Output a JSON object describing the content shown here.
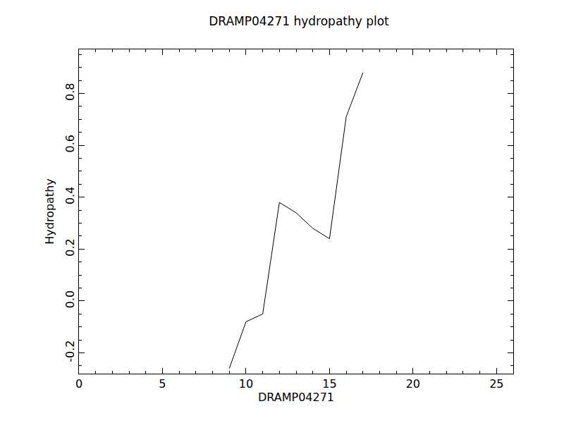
{
  "chart_data": {
    "type": "line",
    "title": "DRAMP04271 hydropathy plot",
    "x_label": "DRAMP04271",
    "y_label": "Hydropathy",
    "x": [
      9,
      10,
      11,
      12,
      13,
      14,
      15,
      16,
      17
    ],
    "values": [
      -0.26,
      -0.08,
      -0.05,
      0.38,
      0.34,
      0.28,
      0.24,
      0.71,
      0.88
    ],
    "color": "#000000",
    "xlim": [
      0,
      26
    ],
    "xticks": [
      0,
      5,
      10,
      15,
      20,
      25
    ],
    "ylim": [
      -0.28,
      0.97
    ],
    "yticks": [
      -0.2,
      {
        "value": 0,
        "label": "0.0"
      },
      0.2,
      0.4,
      0.6,
      0.8
    ],
    "grid": false
  }
}
